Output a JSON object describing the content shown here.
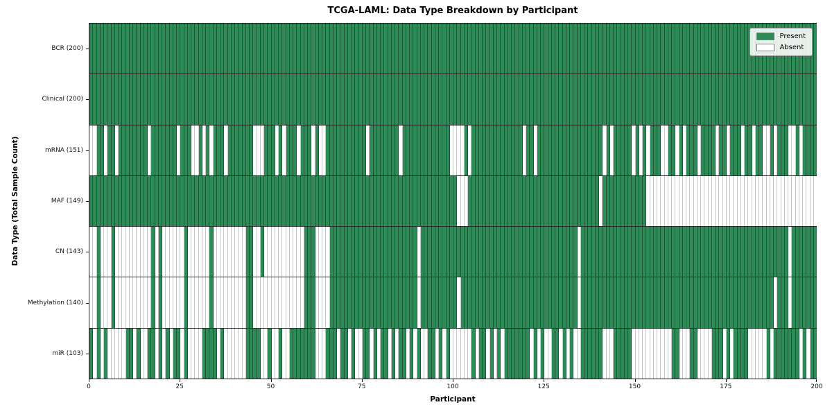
{
  "chart_data": {
    "type": "heatmap",
    "title": "TCGA-LAML: Data Type Breakdown by Participant",
    "xlabel": "Participant",
    "ylabel": "Data Type (Total Sample Count)",
    "x_ticks": [
      0,
      25,
      50,
      75,
      100,
      125,
      150,
      175,
      200
    ],
    "x_range": [
      0,
      200
    ],
    "n_participants": 200,
    "grid": "column and row separators",
    "legend_position": "upper right",
    "legend": [
      {
        "label": "Present",
        "color": "#2e8b57"
      },
      {
        "label": "Absent",
        "color": "#ffffff"
      }
    ],
    "colors": {
      "present": "#2e8b57",
      "absent": "#ffffff",
      "present_edge": "#1c5737",
      "absent_edge": "#c6c6c6"
    },
    "rows": [
      {
        "name": "bcr",
        "label": "BCR (200)",
        "present_count": 200,
        "presence": "11111111111111111111111111111111111111111111111111111111111111111111111111111111111111111111111111111111111111111111111111111111111111111111111111111111111111111111111111111111111111111111111111111111"
      },
      {
        "name": "clinical",
        "label": "Clinical (200)",
        "present_count": 200,
        "presence": "11111111111111111111111111111111111111111111111111111111111111111111111111111111111111111111111111111111111111111111111111111111111111111111111111111111111111111111111111111111111111111111111111111111"
      },
      {
        "name": "mrna",
        "label": "mRNA (151)",
        "present_count": 151,
        "presence": "00110110111111110111111101110010101110111111100011101011101110100111111111110111111110111111111111100001011111111111111011011111111111111111101011111010101110011010111011110110111011011001011100101111"
      },
      {
        "name": "maf",
        "label": "MAF (149)",
        "present_count": 149,
        "presence": "11111111111111111111111111111111111111111111111111111111111111111111111111111111111111111111111111111000111111111111111111111111111111111111011111111111100000000000000000000000000000000000000000000000"
      },
      {
        "name": "cn",
        "label": "CN (143)",
        "present_count": 143,
        "presence": "00100010000000000101000000100000010000000001100100000000000111000011111111111111111111111101111111111111111111111111111111111111111111011111111111111111111111111111111111111111111111111111111101111111"
      },
      {
        "name": "methylation",
        "label": "Methylation (140)",
        "present_count": 140,
        "presence": "00100010000000000101000000100000010000000001100000000000000111000011111111111111111111111101111111111011111111111111111111111111111111011111111111111111111111111111111111111111111111111111011101111111"
      },
      {
        "name": "mir",
        "label": "miR (103)",
        "present_count": 103,
        "presence": "10101000001101001101010110100001111010000001111001001001111111000111011010011010110101101010011010100000010110101011111110101001101010011111100011111000000000001100011000011101011110000010111111101011"
      }
    ]
  }
}
